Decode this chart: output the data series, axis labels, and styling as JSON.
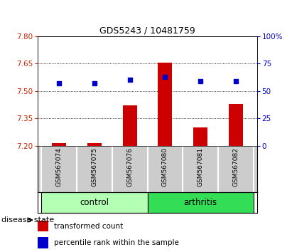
{
  "title": "GDS5243 / 10481759",
  "samples": [
    "GSM567074",
    "GSM567075",
    "GSM567076",
    "GSM567080",
    "GSM567081",
    "GSM567082"
  ],
  "red_values": [
    7.215,
    7.215,
    7.42,
    7.655,
    7.3,
    7.43
  ],
  "blue_values_pct": [
    57,
    57,
    60,
    63,
    59,
    59
  ],
  "ylim_left": [
    7.2,
    7.8
  ],
  "ylim_right": [
    0,
    100
  ],
  "yticks_left": [
    7.2,
    7.35,
    7.5,
    7.65,
    7.8
  ],
  "yticks_right": [
    0,
    25,
    50,
    75,
    100
  ],
  "bar_bottom": 7.2,
  "groups": [
    {
      "label": "control",
      "indices": [
        0,
        1,
        2
      ]
    },
    {
      "label": "arthritis",
      "indices": [
        3,
        4,
        5
      ]
    }
  ],
  "control_color": "#b3ffb3",
  "arthritis_color": "#33dd55",
  "bar_color": "#cc0000",
  "dot_color": "#0000cc",
  "bg_color": "#cccccc",
  "left_tick_color": "#cc2200",
  "right_tick_color": "#0000cc",
  "disease_state_label": "disease state"
}
